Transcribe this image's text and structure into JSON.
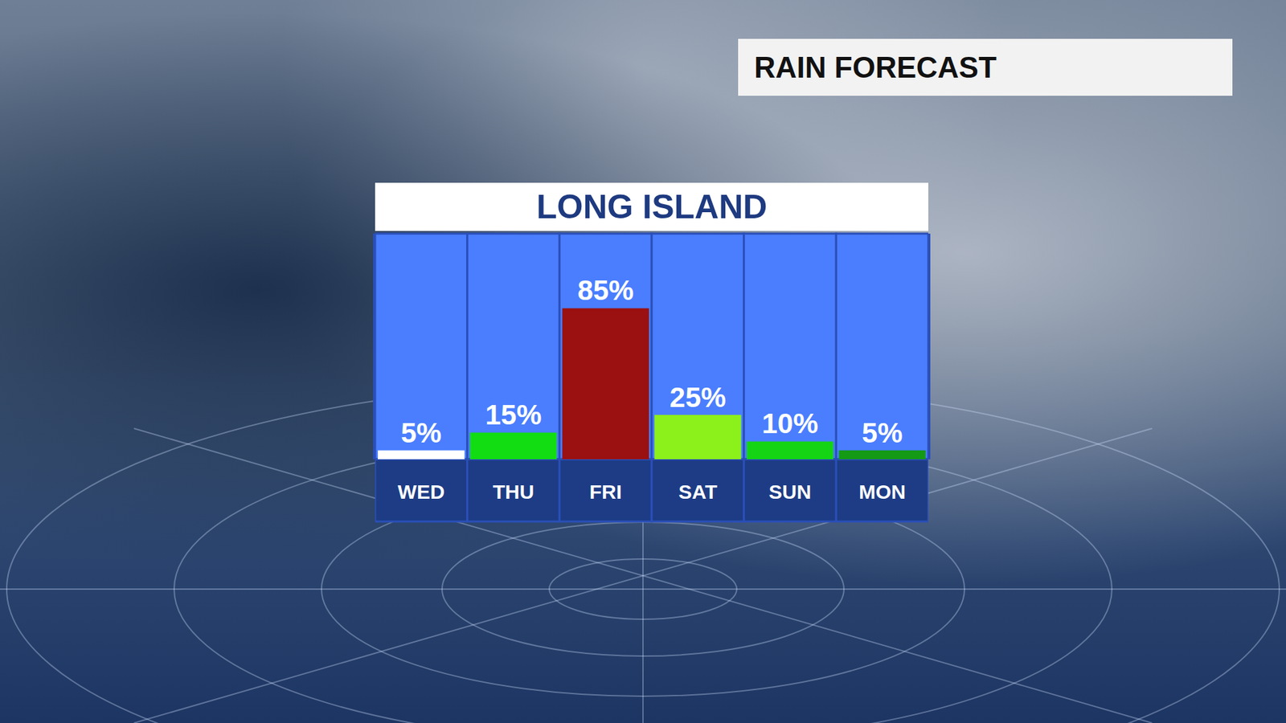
{
  "chart_data": {
    "type": "bar",
    "title": "RAIN FORECAST",
    "subtitle": "LONG ISLAND",
    "categories": [
      "WED",
      "THU",
      "FRI",
      "SAT",
      "SUN",
      "MON"
    ],
    "values": [
      5,
      15,
      85,
      25,
      10,
      5
    ],
    "value_labels": [
      "5%",
      "15%",
      "85%",
      "25%",
      "10%",
      "5%"
    ],
    "colors": [
      "#ffffff",
      "#12dd12",
      "#9b1010",
      "#8cf01a",
      "#14d414",
      "#149a14"
    ],
    "ylim": [
      0,
      127
    ],
    "data_labels": true,
    "tick_labels": "x",
    "grid": false
  }
}
